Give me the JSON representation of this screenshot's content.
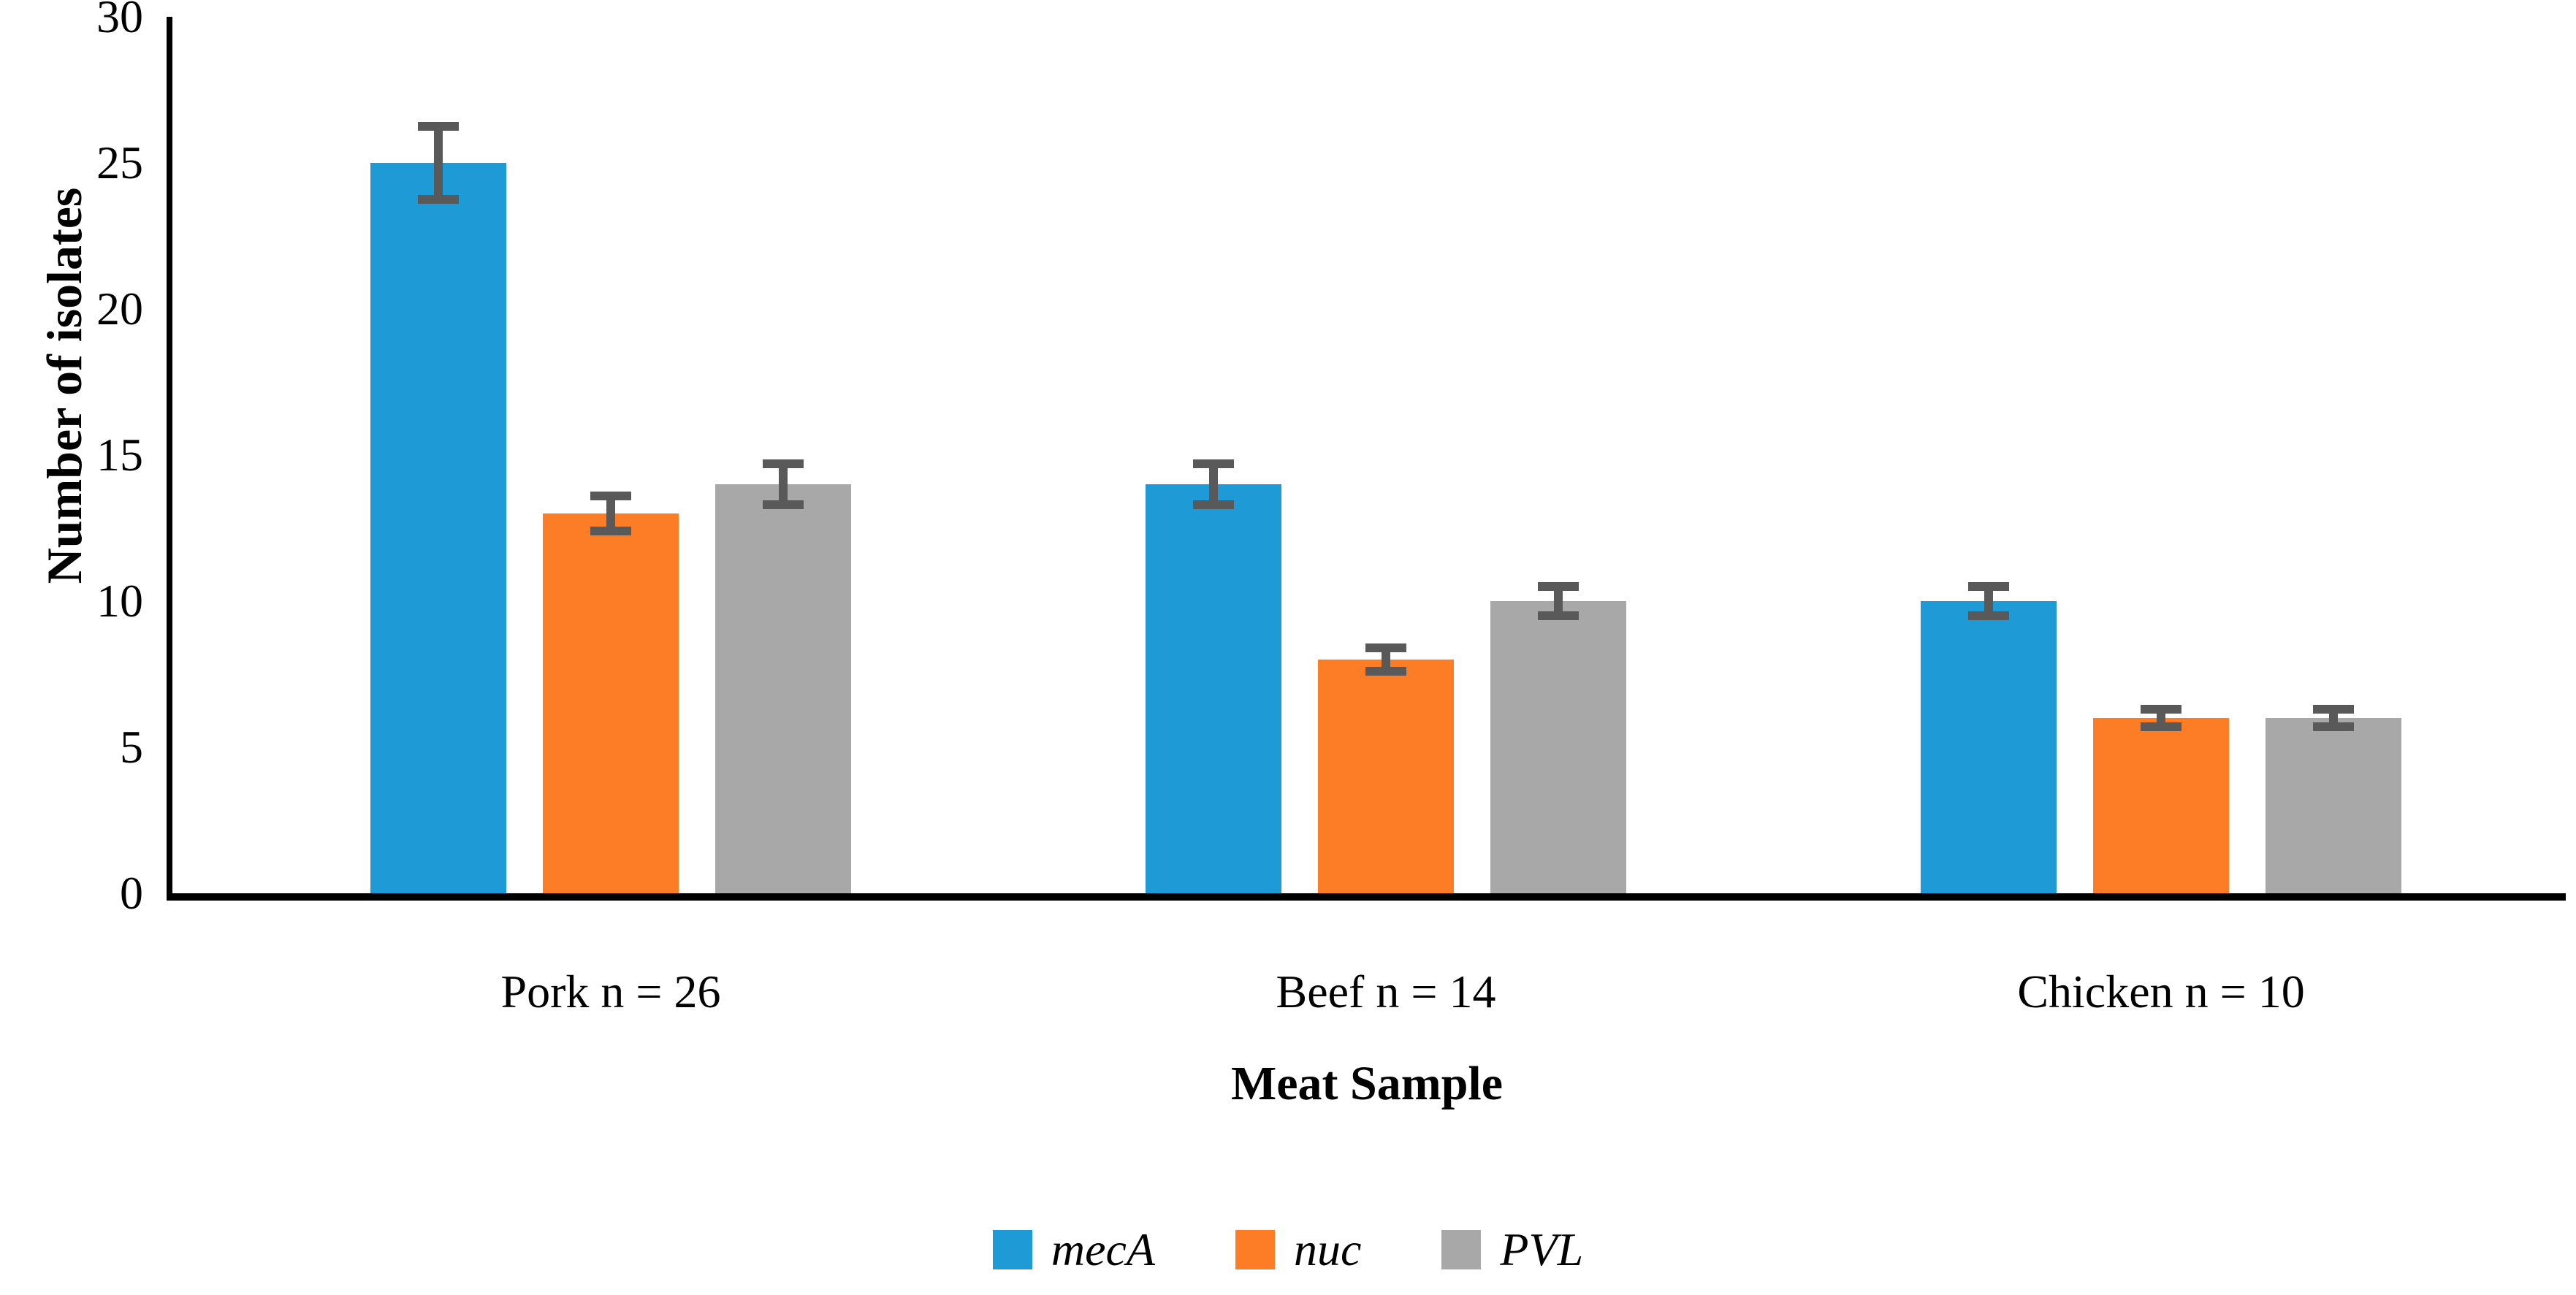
{
  "chart_data": {
    "type": "bar",
    "categories": [
      "Pork n = 26",
      "Beef n = 14",
      "Chicken n = 10"
    ],
    "series": [
      {
        "name": "mecA",
        "color": "#1E9AD6",
        "values": [
          25,
          14,
          10
        ],
        "errors": [
          1.25,
          0.7,
          0.5
        ]
      },
      {
        "name": "nuc",
        "color": "#FC7D26",
        "values": [
          13,
          8,
          6
        ],
        "errors": [
          0.6,
          0.4,
          0.3
        ]
      },
      {
        "name": "PVL",
        "color": "#A8A8A8",
        "values": [
          14,
          10,
          6
        ],
        "errors": [
          0.7,
          0.5,
          0.3
        ]
      }
    ],
    "xlabel": "Meat Sample",
    "ylabel": "Number of isolates",
    "ylim": [
      0,
      30
    ],
    "yticks": [
      0,
      5,
      10,
      15,
      20,
      25,
      30
    ],
    "grid": false,
    "legend_position": "bottom",
    "error_bar_color": "#595959",
    "axis_color": "#000000"
  }
}
